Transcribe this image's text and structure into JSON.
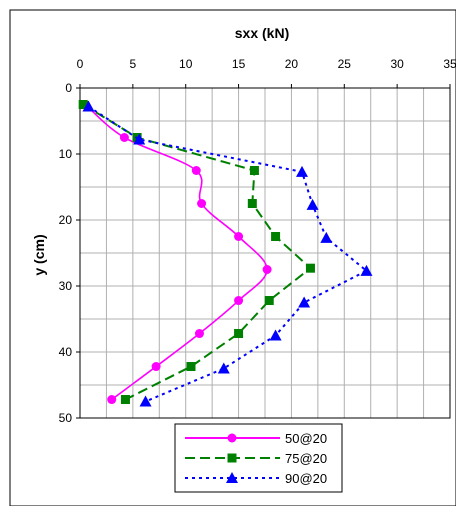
{
  "chart_data": {
    "type": "line",
    "title": "sxx (kN)",
    "xlabel": "sxx (kN)",
    "ylabel": "y (cm)",
    "xlim": [
      0,
      35
    ],
    "ylim": [
      0,
      50
    ],
    "y_inverted": true,
    "x_axis_position": "top",
    "x_ticks": [
      0,
      5,
      10,
      15,
      20,
      25,
      30,
      35
    ],
    "y_ticks": [
      0,
      10,
      20,
      30,
      40,
      50
    ],
    "x_tick_labels": [
      "0",
      "5",
      "10",
      "15",
      "20",
      "25",
      "30",
      "35"
    ],
    "y_tick_labels": [
      "0",
      "10",
      "20",
      "30",
      "40",
      "50"
    ],
    "grid": true,
    "legend_position": "bottom-center",
    "series": [
      {
        "name": "50@20",
        "color": "#ff00ff",
        "line_style": "solid",
        "marker": "circle",
        "points": [
          [
            0.5,
            2.5
          ],
          [
            4.2,
            7.5
          ],
          [
            11,
            12.5
          ],
          [
            11.5,
            17.5
          ],
          [
            15,
            22.5
          ],
          [
            17.7,
            27.5
          ],
          [
            15,
            32.2
          ],
          [
            11.3,
            37.2
          ],
          [
            7.2,
            42.2
          ],
          [
            3,
            47.2
          ]
        ]
      },
      {
        "name": "75@20",
        "color": "#008000",
        "line_style": "dashed",
        "marker": "square",
        "points": [
          [
            0.3,
            2.5
          ],
          [
            5.4,
            7.5
          ],
          [
            16.5,
            12.5
          ],
          [
            16.3,
            17.5
          ],
          [
            18.5,
            22.5
          ],
          [
            21.8,
            27.3
          ],
          [
            17.9,
            32.2
          ],
          [
            15,
            37.2
          ],
          [
            10.5,
            42.2
          ],
          [
            4.3,
            47.2
          ]
        ]
      },
      {
        "name": "90@20",
        "color": "#0000ff",
        "line_style": "dotted",
        "marker": "triangle",
        "points": [
          [
            0.8,
            2.8
          ],
          [
            5.6,
            7.8
          ],
          [
            21,
            12.7
          ],
          [
            22,
            17.7
          ],
          [
            23.3,
            22.7
          ],
          [
            27.1,
            27.7
          ],
          [
            21.2,
            32.5
          ],
          [
            18.5,
            37.5
          ],
          [
            13.6,
            42.5
          ],
          [
            6.2,
            47.5
          ]
        ]
      }
    ]
  }
}
